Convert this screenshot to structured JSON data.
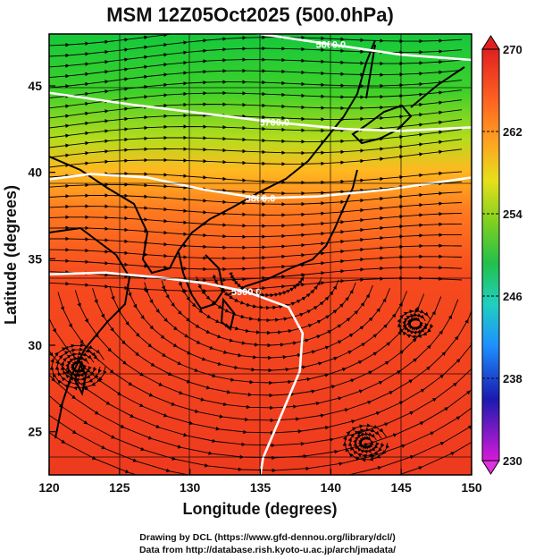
{
  "title": "MSM 12Z05Oct2025 (500.0hPa)",
  "x_axis": {
    "label": "Longitude (degrees)",
    "range": [
      120,
      150
    ],
    "ticks": [
      "120",
      "125",
      "130",
      "135",
      "140",
      "145",
      "150"
    ]
  },
  "y_axis": {
    "label": "Latitude  (degrees)",
    "range": [
      22.5,
      48
    ],
    "ticks": [
      "25",
      "30",
      "35",
      "40",
      "45"
    ]
  },
  "colorbar": {
    "range": [
      230,
      270
    ],
    "tick_labels": [
      "270",
      "262",
      "254",
      "246",
      "238",
      "230"
    ],
    "colors": [
      "#d81ad8",
      "#1a1ab0",
      "#1e90ff",
      "#20d0c0",
      "#22c04a",
      "#7fd020",
      "#e6e01a",
      "#ffa020",
      "#ff5020",
      "#e02020"
    ]
  },
  "contours": [
    {
      "label": "5600.0",
      "lat_at_lon": [
        [
          120,
          49.2
        ],
        [
          128,
          48.6
        ],
        [
          135,
          48.0
        ],
        [
          140,
          47.4
        ],
        [
          145,
          46.8
        ],
        [
          150,
          46.5
        ]
      ]
    },
    {
      "label": "5700.0",
      "lat_at_lon": [
        [
          120,
          44.6
        ],
        [
          126,
          43.9
        ],
        [
          131,
          43.4
        ],
        [
          136,
          42.9
        ],
        [
          141,
          42.5
        ],
        [
          145,
          42.4
        ],
        [
          150,
          42.6
        ]
      ]
    },
    {
      "label": "5800.0",
      "lat_at_lon": [
        [
          120,
          39.6
        ],
        [
          123,
          39.9
        ],
        [
          127,
          39.7
        ],
        [
          131,
          39.0
        ],
        [
          135,
          38.5
        ],
        [
          139,
          38.6
        ],
        [
          144,
          39.0
        ],
        [
          150,
          39.7
        ]
      ]
    },
    {
      "label": "5900.0",
      "lat_at_lon": [
        [
          120,
          34.1
        ],
        [
          124,
          34.2
        ],
        [
          128,
          33.9
        ],
        [
          131,
          33.6
        ],
        [
          134,
          33.1
        ],
        [
          137,
          32.2
        ],
        [
          138,
          30.7
        ],
        [
          137.8,
          28.5
        ],
        [
          136.5,
          26.0
        ],
        [
          135.2,
          23.5
        ],
        [
          135,
          22.5
        ]
      ]
    }
  ],
  "footer": {
    "line1": "Drawing by DCL (https://www.gfd-dennou.org/library/dcl/)",
    "line2": "Data from http://database.rish.kyoto-u.ac.jp/arch/jmadata/"
  }
}
